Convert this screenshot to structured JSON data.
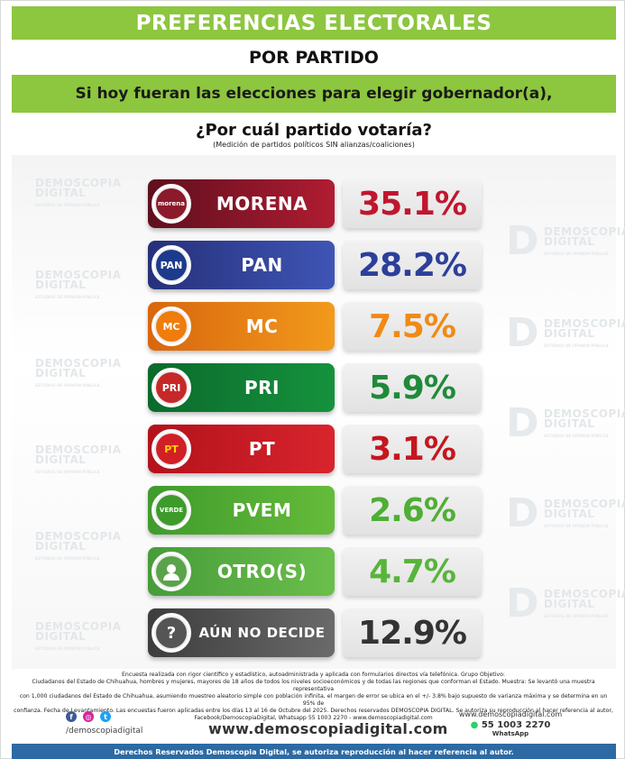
{
  "title": "PREFERENCIAS ELECTORALES",
  "subtitle": "POR PARTIDO",
  "question_line1": "Si hoy fueran las elecciones para elegir gobernador(a),",
  "question_line2": "¿Por cuál partido votaría?",
  "note": "(Medición de partidos políticos SIN alianzas/coaliciones)",
  "watermark": {
    "name1": "DEMOSCOPIA",
    "name2": "DIGITAL",
    "tagline": "ESTUDIOS DE OPINIÓN PÚBLICA"
  },
  "chart_data": {
    "type": "bar",
    "categories": [
      "MORENA",
      "PAN",
      "MC",
      "PRI",
      "PT",
      "PVEM",
      "OTRO(S)",
      "AÚN NO DECIDE"
    ],
    "values": [
      35.1,
      28.2,
      7.5,
      5.9,
      3.1,
      2.6,
      4.7,
      12.9
    ],
    "value_labels": [
      "35.1%",
      "28.2%",
      "7.5%",
      "5.9%",
      "3.1%",
      "2.6%",
      "4.7%",
      "12.9%"
    ],
    "unit": "%"
  },
  "parties": [
    {
      "name": "MORENA",
      "value": "35.1%",
      "logo_text": "morena",
      "logo_icon": "morena-logo-icon",
      "grad_from": "#5e0f1e",
      "grad_to": "#b01c32",
      "value_color": "#c0162e",
      "logo_bg": "#8b1a2b",
      "logo_fg": "#ffffff"
    },
    {
      "name": "PAN",
      "value": "28.2%",
      "logo_text": "PAN",
      "logo_icon": "pan-logo-icon",
      "grad_from": "#26307a",
      "grad_to": "#3f55b5",
      "value_color": "#2c3f9b",
      "logo_bg": "#1d3b8c",
      "logo_fg": "#ffffff"
    },
    {
      "name": "MC",
      "value": "7.5%",
      "logo_text": "MC",
      "logo_icon": "mc-logo-icon",
      "grad_from": "#d8660e",
      "grad_to": "#f29a1c",
      "value_color": "#f08a15",
      "logo_bg": "#f07c0b",
      "logo_fg": "#ffffff"
    },
    {
      "name": "PRI",
      "value": "5.9%",
      "logo_text": "PRI",
      "logo_icon": "pri-logo-icon",
      "grad_from": "#0b6a2c",
      "grad_to": "#15923d",
      "value_color": "#1f8a3a",
      "logo_bg": "#c62828",
      "logo_fg": "#ffffff"
    },
    {
      "name": "PT",
      "value": "3.1%",
      "logo_text": "PT",
      "logo_icon": "pt-logo-icon",
      "grad_from": "#b3121b",
      "grad_to": "#d8242d",
      "value_color": "#c6161f",
      "logo_bg": "#d11f26",
      "logo_fg": "#ffd200"
    },
    {
      "name": "PVEM",
      "value": "2.6%",
      "logo_text": "VERDE",
      "logo_icon": "pvem-logo-icon",
      "grad_from": "#3f9b2c",
      "grad_to": "#65bb3a",
      "value_color": "#4fae34",
      "logo_bg": "#3e9b2b",
      "logo_fg": "#ffffff"
    },
    {
      "name": "OTRO(S)",
      "value": "4.7%",
      "logo_text": "",
      "logo_icon": "user-icon",
      "grad_from": "#479c3a",
      "grad_to": "#6bbf4b",
      "value_color": "#58b43a",
      "logo_bg": "#5aa34a",
      "logo_fg": "#ffffff"
    },
    {
      "name": "AÚN NO DECIDE",
      "value": "12.9%",
      "logo_text": "?",
      "logo_icon": "question-icon",
      "grad_from": "#3d3d3d",
      "grad_to": "#6a6a6a",
      "value_color": "#333333",
      "logo_bg": "#555555",
      "logo_fg": "#ffffff"
    }
  ],
  "methodology": [
    "Encuesta realizada con rigor científico y estadístico, autoadministrada y aplicada con formularios directos vía telefónica. Grupo Objetivo:",
    "Ciudadanos del Estado de Chihuahua, hombres y mujeres, mayores de 18 años de todos los niveles socioeconómicos y de todas las regiones que conforman el Estado. Muestra: Se levantó una muestra representativa",
    "con 1,000 ciudadanos del Estado de Chihuahua, asumiendo muestreo aleatorio simple con población infinita, el margen de error se ubica en el +/- 3.8% bajo supuesto de varianza máxima y se determina en un 95% de",
    "confianza. Fecha de Levantamiento. Las encuestas fueron aplicadas entre los días 13 al 16 de Octubre del 2025. Derechos reservados DEMOSCOPIA DIGITAL. Se autoriza su reproducción al hacer referencia al autor,",
    "Facebook/DemoscopiaDigital, Whatsapp 55 1003 2270 - www.demoscopiadigital.com"
  ],
  "social": {
    "handle": "/demoscopiadigital",
    "icons": [
      "facebook-icon",
      "instagram-icon",
      "twitter-icon"
    ],
    "glyphs": [
      "f",
      "◎",
      "t"
    ]
  },
  "website": "www.demoscopiadigital.com",
  "contact": {
    "website": "www.demoscopiadigital.com",
    "phone": "55 1003 2270",
    "whatsapp": "WhatsApp"
  },
  "footer": "Derechos Reservados Demoscopia Digital, se autoriza reproducción al hacer referencia al autor.",
  "colors": {
    "accent_green": "#8dc63f",
    "footer_blue": "#2d6aa3"
  }
}
